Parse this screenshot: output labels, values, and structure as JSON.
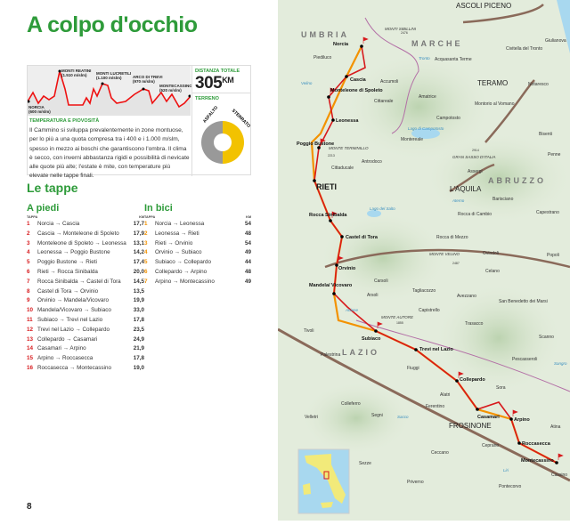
{
  "title": "A colpo d'occhio",
  "profile": {
    "points": [
      {
        "name": "NORCIA",
        "elev": "(600 m/slm)"
      },
      {
        "name": "MONTI REATINI",
        "elev": "(1.510 m/slm)"
      },
      {
        "name": "MONTI LUCRETILI",
        "elev": "(1.100 m/slm)"
      },
      {
        "name": "ARCO DI TREVI",
        "elev": "(970 m/slm)"
      },
      {
        "name": "MONTECASSINO",
        "elev": "(520 m/slm)"
      }
    ]
  },
  "distance": {
    "label": "DISTANZA TOTALE",
    "value": "305",
    "unit": "KM"
  },
  "terrain": {
    "label": "TERRENO",
    "asphalt": "ASFALTO",
    "dirt": "STERRATO",
    "asphalt_pct": 50,
    "dirt_pct": 50,
    "colors": {
      "asphalt": "#999999",
      "dirt": "#f2c200"
    }
  },
  "climate": {
    "heading": "TEMPERATURA E PIOVOSITÀ",
    "text": "Il Cammino si sviluppa prevalentemente in zone montuose, per lo più a una quota compresa tra i 400 e i 1.000 m/slm, spesso in mezzo ai boschi che garantiscono l'ombra. Il clima è secco, con inverni abbastanza rigidi e possibilità di nevicate alle quote più alte; l'estate è mite, con temperature più elevate nelle tappe finali."
  },
  "stages_heading": "Le tappe",
  "walk": {
    "heading": "A piedi",
    "col_stage": "TAPPA",
    "col_km": "KM",
    "rows": [
      {
        "n": "1",
        "route": "Norcia → Cascia",
        "km": "17,7"
      },
      {
        "n": "2",
        "route": "Cascia → Monteleone di Spoleto",
        "km": "17,9"
      },
      {
        "n": "3",
        "route": "Monteleone di Spoleto → Leonessa",
        "km": "13,1"
      },
      {
        "n": "4",
        "route": "Leonessa → Poggio Bustone",
        "km": "14,2"
      },
      {
        "n": "5",
        "route": "Poggio Bustone → Rieti",
        "km": "17,4"
      },
      {
        "n": "6",
        "route": "Rieti → Rocca Sinibalda",
        "km": "20,0"
      },
      {
        "n": "7",
        "route": "Rocca Sinibalda → Castel di Tora",
        "km": "14,5"
      },
      {
        "n": "8",
        "route": "Castel di Tora → Orvinio",
        "km": "13,5"
      },
      {
        "n": "9",
        "route": "Orvinio → Mandela/Vicovaro",
        "km": "19,9"
      },
      {
        "n": "10",
        "route": "Mandela/Vicovaro → Subiaco",
        "km": "33,0"
      },
      {
        "n": "11",
        "route": "Subiaco → Trevi nel Lazio",
        "km": "17,8"
      },
      {
        "n": "12",
        "route": "Trevi nel Lazio → Collepardo",
        "km": "23,5"
      },
      {
        "n": "13",
        "route": "Collepardo → Casamari",
        "km": "24,9"
      },
      {
        "n": "14",
        "route": "Casamari → Arpino",
        "km": "21,9"
      },
      {
        "n": "15",
        "route": "Arpino → Roccasecca",
        "km": "17,8"
      },
      {
        "n": "16",
        "route": "Roccasecca → Montecassino",
        "km": "19,0"
      }
    ]
  },
  "bike": {
    "heading": "In bici",
    "col_stage": "TAPPA",
    "col_km": "KM",
    "rows": [
      {
        "n": "1",
        "route": "Norcia → Leonessa",
        "km": "54"
      },
      {
        "n": "2",
        "route": "Leonessa → Rieti",
        "km": "48"
      },
      {
        "n": "3",
        "route": "Rieti → Orvinio",
        "km": "54"
      },
      {
        "n": "4",
        "route": "Orvinio → Subiaco",
        "km": "49"
      },
      {
        "n": "5",
        "route": "Subiaco → Collepardo",
        "km": "44"
      },
      {
        "n": "6",
        "route": "Collepardo → Arpino",
        "km": "48"
      },
      {
        "n": "7",
        "route": "Arpino → Montecassino",
        "km": "49"
      }
    ]
  },
  "page_number": "8",
  "colors": {
    "green": "#2e9b3a",
    "walk": "#d7191c",
    "bike": "#f39200"
  },
  "map": {
    "regions": [
      "UMBRIA",
      "MARCHE",
      "ABRUZZO",
      "LAZIO"
    ],
    "stops": [
      "Norcia",
      "Cascia",
      "Monteleone di Spoleto",
      "Leonessa",
      "Poggio Bustone",
      "RIETI",
      "Rocca Sinibalda",
      "Castel di Tora",
      "Orvinio",
      "Mandela/ Vicovaro",
      "Subiaco",
      "Trevi nel Lazio",
      "Collepardo",
      "Casamari",
      "Arpino",
      "Roccasecca",
      "Montecassino"
    ],
    "cities": [
      "ASCOLI PICENO",
      "TERAMO",
      "L'AQUILA",
      "FROSINONE"
    ],
    "towns": [
      "Piediluco",
      "Accumoli",
      "Acquasanta Terme",
      "Civitella del Tronto",
      "Giulianova",
      "Notaresco",
      "Amatrice",
      "Cittareale",
      "Montorio al Vomano",
      "Campotosto",
      "Montereale",
      "Bisenti",
      "Penne",
      "Antrodoco",
      "Cittaducale",
      "Assergi",
      "Barisciano",
      "Capestrano",
      "Rocca di Cambio",
      "Rocca di Mezzo",
      "Ovindoli",
      "Popoli",
      "Celano",
      "Carsoli",
      "Tagliacozzo",
      "Avezzano",
      "San Benedetto dei Marsi",
      "Arsoli",
      "Capistrello",
      "Trasacco",
      "Tivoli",
      "Scanno",
      "Palestrina",
      "Pescasseroli",
      "Fiuggi",
      "Alatri",
      "Sora",
      "Atina",
      "Colleferro",
      "Ferentino",
      "Velletri",
      "Segni",
      "Ceprano",
      "Ceccano",
      "Sezze",
      "Priverno",
      "Pontecorvo",
      "Cassino"
    ],
    "mountains": [
      "MONTI SIBILLINI",
      "MONTE TERMINILLO",
      "GRAN SASSO D'ITALIA",
      "MONTE VELINO",
      "MONTE AUTORE"
    ],
    "peaks": [
      "2476",
      "2213",
      "2914",
      "2487",
      "1855"
    ],
    "waters": [
      "Lago di Campotosto",
      "Lago del Salto",
      "Aterno",
      "Sacco",
      "Liri",
      "Sangro",
      "Tronto",
      "Aniene",
      "Velino"
    ]
  }
}
